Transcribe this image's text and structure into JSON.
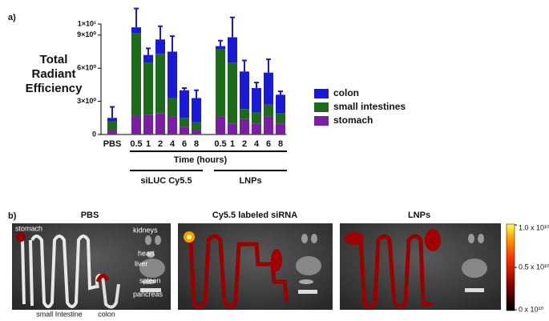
{
  "chart_data": {
    "type": "bar",
    "stacked": true,
    "panel_label": "a)",
    "ylabel": "Total Radiant Efficiency",
    "xlabel": "Time (hours)",
    "groups": [
      "siLUC Cy5.5",
      "LNPs"
    ],
    "categories": [
      "PBS",
      null,
      "0.5",
      "1",
      "2",
      "4",
      "6",
      "8",
      null,
      "0.5",
      "1",
      "2",
      "4",
      "6",
      "8"
    ],
    "series": [
      {
        "name": "stomach",
        "color": "#7b1fa2",
        "values": [
          0.4,
          null,
          1.7,
          1.8,
          1.9,
          1.6,
          0.7,
          0.4,
          null,
          1.6,
          1.0,
          1.4,
          1.0,
          1.6,
          1.0
        ]
      },
      {
        "name": "small intestines",
        "color": "#1b6b1b",
        "values": [
          0.8,
          null,
          7.5,
          4.7,
          5.4,
          1.7,
          0.8,
          0.7,
          null,
          6.1,
          5.5,
          0.9,
          1.0,
          1.1,
          0.9
        ]
      },
      {
        "name": "colon",
        "color": "#1a1ad6",
        "values": [
          0.3,
          null,
          0.5,
          0.7,
          1.3,
          4.2,
          2.5,
          2.2,
          null,
          0.3,
          2.3,
          3.4,
          2.2,
          2.9,
          1.7
        ]
      }
    ],
    "errors": [
      1.0,
      null,
      1.7,
      0.6,
      1.2,
      1.4,
      0.2,
      0.7,
      null,
      0.5,
      1.8,
      1.0,
      0.5,
      1.2,
      0.3
    ],
    "ylim": [
      0,
      10
    ],
    "yticks": [
      0,
      {
        "value": 3,
        "label": "3×10⁰"
      },
      {
        "value": 6,
        "label": "6×10⁰"
      },
      {
        "value": 9,
        "label": "9×10⁰"
      },
      {
        "value": 10,
        "label": "1×10¹"
      }
    ],
    "legend": "right"
  },
  "images": {
    "panel_label": "b)",
    "panels": [
      {
        "title": "PBS"
      },
      {
        "title": "Cy5.5 labeled siRNA"
      },
      {
        "title": "LNPs"
      }
    ],
    "organ_labels": {
      "stomach": "stomach",
      "kidneys": "kidneys",
      "heart": "heart",
      "liver": "liver",
      "spleen": "spleen",
      "pancreas": "pancreas",
      "small_intestine": "small Intestine",
      "colon": "colon"
    },
    "colorbar": {
      "clim": [
        0,
        10000000000
      ],
      "ticks": [
        {
          "value": 10000000000,
          "label": "1.0 x 10¹⁰"
        },
        {
          "value": 5000000000,
          "label": "0.5 x 10¹⁰"
        },
        {
          "value": 0,
          "label": "0 x 10¹⁰"
        }
      ]
    }
  }
}
